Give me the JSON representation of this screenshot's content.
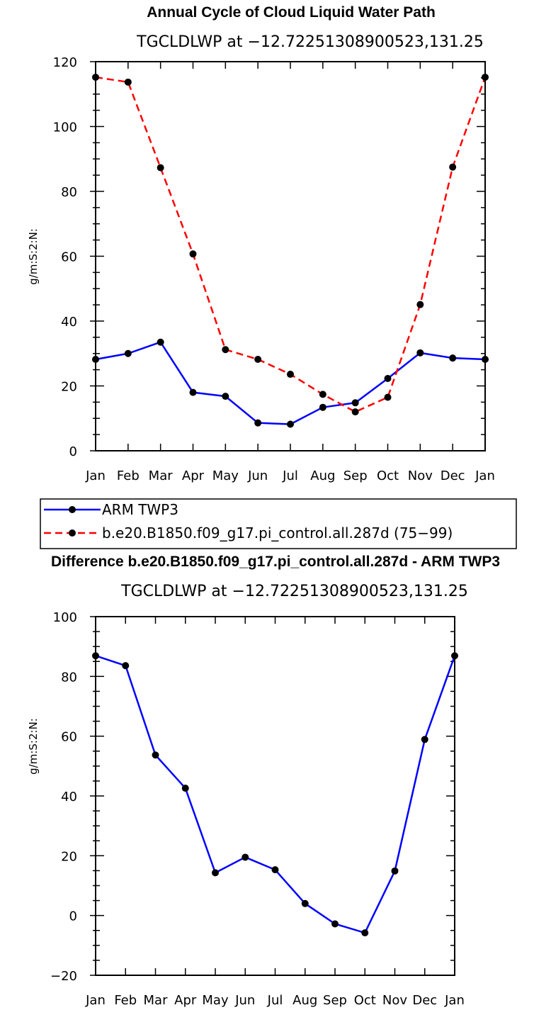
{
  "chart_data": [
    {
      "type": "line",
      "title": "Annual Cycle of Cloud Liquid Water Path",
      "subtitle": "TGCLDLWP at −12.72251308900523,131.25",
      "xlabel": "",
      "ylabel": "g/m:S:2:N:",
      "categories": [
        "Jan",
        "Feb",
        "Mar",
        "Apr",
        "May",
        "Jun",
        "Jul",
        "Aug",
        "Sep",
        "Oct",
        "Nov",
        "Dec",
        "Jan"
      ],
      "ylim": [
        0,
        120
      ],
      "yticks": [
        0,
        20,
        40,
        60,
        80,
        100,
        120
      ],
      "series": [
        {
          "name": "ARM TWP3",
          "color": "#0000ff",
          "dash": "solid",
          "values": [
            28.2,
            30.0,
            33.5,
            18.0,
            16.8,
            8.6,
            8.2,
            13.4,
            14.8,
            22.3,
            30.2,
            28.6,
            28.2
          ]
        },
        {
          "name": "b.e20.B1850.f09_g17.pi_control.all.287d (75−99)",
          "color": "#ff0000",
          "dash": "dashed",
          "values": [
            115.2,
            113.7,
            87.3,
            60.7,
            31.2,
            28.2,
            23.6,
            17.4,
            12.0,
            16.5,
            45.1,
            87.5,
            115.2
          ]
        }
      ]
    },
    {
      "type": "line",
      "title": "Difference b.e20.B1850.f09_g17.pi_control.all.287d - ARM TWP3",
      "subtitle": "TGCLDLWP at −12.72251308900523,131.25",
      "xlabel": "",
      "ylabel": "g/m:S:2:N:",
      "categories": [
        "Jan",
        "Feb",
        "Mar",
        "Apr",
        "May",
        "Jun",
        "Jul",
        "Aug",
        "Sep",
        "Oct",
        "Nov",
        "Dec",
        "Jan"
      ],
      "ylim": [
        -20,
        100
      ],
      "yticks": [
        -20,
        0,
        20,
        40,
        60,
        80,
        100
      ],
      "series": [
        {
          "name": "Difference",
          "color": "#0000ff",
          "dash": "solid",
          "values": [
            86.9,
            83.6,
            53.7,
            42.6,
            14.3,
            19.5,
            15.3,
            4.0,
            -2.8,
            -5.8,
            14.9,
            58.9,
            86.9
          ]
        }
      ]
    }
  ]
}
